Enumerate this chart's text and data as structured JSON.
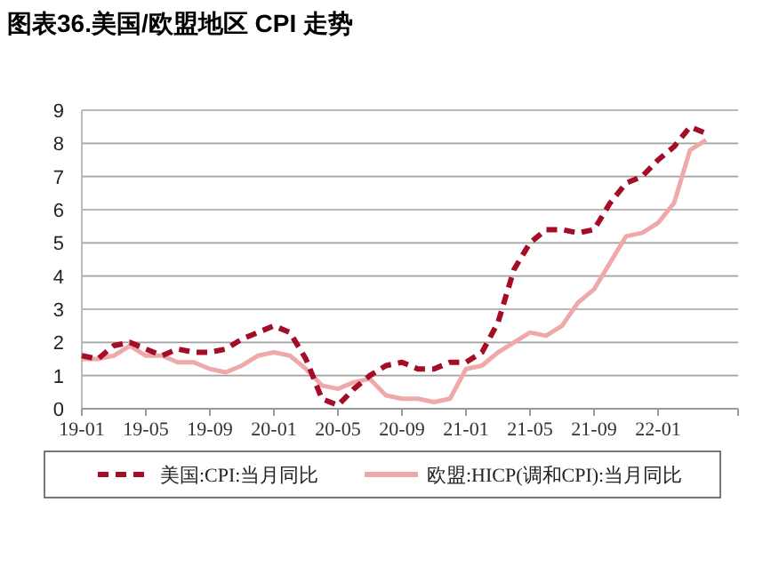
{
  "chart_data": {
    "type": "line",
    "title": "图表36.美国/欧盟地区 CPI 走势",
    "categories": [
      "19-01",
      null,
      null,
      null,
      "19-05",
      null,
      null,
      null,
      "19-09",
      null,
      null,
      null,
      "20-01",
      null,
      null,
      null,
      "20-05",
      null,
      null,
      null,
      "20-09",
      null,
      null,
      null,
      "21-01",
      null,
      null,
      null,
      "21-05",
      null,
      null,
      null,
      "21-09",
      null,
      null,
      null,
      "22-01",
      null,
      null,
      null
    ],
    "series": [
      {
        "name": "美国:CPI:当月同比",
        "color": "#a50d26",
        "line_style": "dashed",
        "values": [
          1.6,
          1.5,
          1.9,
          2.0,
          1.8,
          1.6,
          1.8,
          1.7,
          1.7,
          1.8,
          2.1,
          2.3,
          2.5,
          2.3,
          1.5,
          0.3,
          0.1,
          0.6,
          1.0,
          1.3,
          1.4,
          1.2,
          1.2,
          1.4,
          1.4,
          1.7,
          2.6,
          4.2,
          5.0,
          5.4,
          5.4,
          5.3,
          5.4,
          6.2,
          6.8,
          7.0,
          7.5,
          7.9,
          8.5,
          8.3
        ]
      },
      {
        "name": "欧盟:HICP(调和CPI):当月同比",
        "color": "#eeaaaa",
        "line_style": "solid",
        "values": [
          1.5,
          1.5,
          1.6,
          1.9,
          1.6,
          1.6,
          1.4,
          1.4,
          1.2,
          1.1,
          1.3,
          1.6,
          1.7,
          1.6,
          1.2,
          0.7,
          0.6,
          0.8,
          0.9,
          0.4,
          0.3,
          0.3,
          0.2,
          0.3,
          1.2,
          1.3,
          1.7,
          2.0,
          2.3,
          2.2,
          2.5,
          3.2,
          3.6,
          4.4,
          5.2,
          5.3,
          5.6,
          6.2,
          7.8,
          8.1
        ]
      }
    ],
    "ylim": [
      0,
      9
    ],
    "yticks": [
      0,
      1,
      2,
      3,
      4,
      5,
      6,
      7,
      8,
      9
    ],
    "grid": "y",
    "legend": "bottom",
    "marker": "none"
  }
}
